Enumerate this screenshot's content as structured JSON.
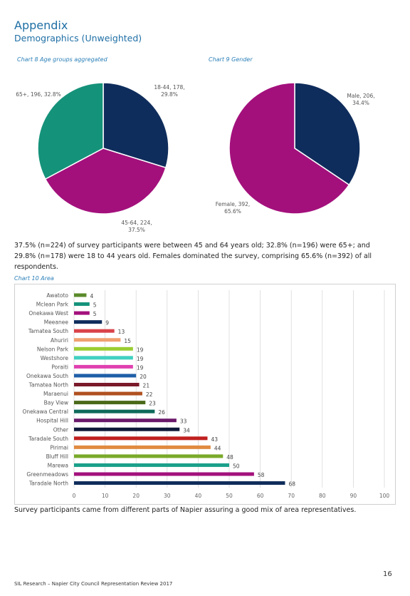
{
  "header": {
    "title": "Appendix",
    "subtitle": "Demographics (Unweighted)"
  },
  "chart_data": [
    {
      "type": "pie",
      "title": "Chart 8 Age groups aggregated",
      "categories": [
        "18-44",
        "45-64",
        "65+"
      ],
      "values": [
        29.8,
        37.5,
        32.8
      ],
      "value_labels": [
        "18-44, 178, 29.8%",
        "45-64, 224, 37.5%",
        "65+, 196, 32.8%"
      ],
      "colors": [
        "#0f2d5c",
        "#a3107c",
        "#15927a"
      ]
    },
    {
      "type": "pie",
      "title": "Chart 9 Gender",
      "categories": [
        "Male",
        "Female"
      ],
      "values": [
        34.4,
        65.6
      ],
      "value_labels": [
        "Male, 206, 34.4%",
        "Female, 392, 65.6%"
      ],
      "colors": [
        "#0f2d5c",
        "#a3107c"
      ]
    },
    {
      "type": "hbar",
      "title": "Chart 10 Area",
      "categories": [
        "Awatoto",
        "Mclean Park",
        "Onekawa West",
        "Meeanee",
        "Tamatea South",
        "Ahuriri",
        "Nelson Park",
        "Westshore",
        "Poraiti",
        "Onekawa South",
        "Tamatea North",
        "Maraenui",
        "Bay View",
        "Onekawa Central",
        "Hospital Hill",
        "Other",
        "Taradale South",
        "Pirimai",
        "Bluff Hill",
        "Marewa",
        "Greenmeadows",
        "Taradale North"
      ],
      "values": [
        4,
        5,
        5,
        9,
        13,
        15,
        19,
        19,
        19,
        20,
        21,
        22,
        23,
        26,
        33,
        34,
        43,
        44,
        48,
        50,
        58,
        68
      ],
      "colors": [
        "#5a8a2a",
        "#15927a",
        "#a3107c",
        "#0f2d5c",
        "#d9434a",
        "#f0a070",
        "#9acd32",
        "#40d0c0",
        "#e040b0",
        "#1f5fa8",
        "#7a1a2a",
        "#b05020",
        "#4a6a1a",
        "#0f6a5a",
        "#6a1a6a",
        "#101a3a",
        "#c02020",
        "#e08a40",
        "#7aaa2a",
        "#1aa08a",
        "#a3107c",
        "#0f2d5c"
      ],
      "xlim": [
        0,
        100
      ],
      "xticks": [
        0,
        10,
        20,
        30,
        40,
        50,
        60,
        70,
        80,
        90,
        100
      ],
      "grid": true
    }
  ],
  "paragraphs": [
    "37.5% (n=224) of survey participants were between 45 and 64 years old; 32.8% (n=196) were 65+; and 29.8% (n=178) were 18 to 44 years old. Females dominated the survey, comprising 65.6% (n=392) of all respondents.",
    "Survey participants came from different parts of Napier assuring a good mix of area representatives."
  ],
  "footer": {
    "text": "SIL Research – Napier City Council Representation Review 2017",
    "page": "16"
  }
}
